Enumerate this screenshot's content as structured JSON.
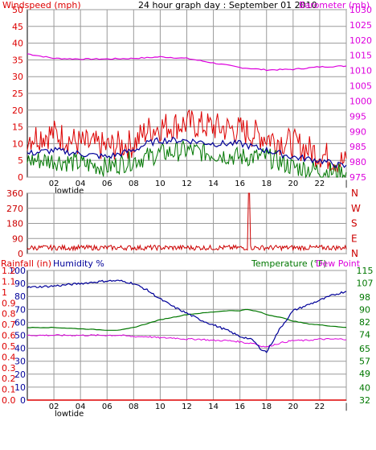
{
  "window": {
    "title": "24 hour graph day : September 01 2010"
  },
  "colors": {
    "windspeed": "#dd0000",
    "gust_green": "#007700",
    "avg_blue": "#000099",
    "barometer": "#dd00dd",
    "direction": "#cc0000",
    "humidity": "#000099",
    "temperature": "#007700",
    "dewpoint": "#dd00dd",
    "rainfall": "#dd0000",
    "grid": "#9a9a9a"
  },
  "chart_data": [
    {
      "type": "line",
      "title": "24 hour graph day : September 01 2010",
      "ylabel": "Windspeed (mph)",
      "y2label": "Barometer (mb)",
      "x_ticks": [
        "02",
        "04",
        "06",
        "08",
        "10",
        "12",
        "14",
        "16",
        "18",
        "20",
        "22",
        "|"
      ],
      "x_annotation": "lowtide",
      "ylim": [
        0,
        50
      ],
      "y_ticks": [
        "50",
        "45",
        "40",
        "35",
        "30",
        "25",
        "20",
        "15",
        "10",
        "5",
        "0"
      ],
      "y2lim": [
        975,
        1030
      ],
      "y2_ticks": [
        "1030",
        "1025",
        "1020",
        "1015",
        "1010",
        "1005",
        "1000",
        "995",
        "990",
        "985",
        "980",
        "975"
      ],
      "x": [
        0,
        2,
        4,
        6,
        8,
        9,
        10,
        12,
        14,
        16,
        18,
        20,
        22,
        24
      ],
      "series": [
        {
          "values": [
            12,
            13,
            10,
            9,
            10,
            14,
            15,
            16,
            15,
            14,
            12,
            10,
            7,
            4
          ]
        },
        {
          "values": [
            5,
            5,
            4,
            3,
            5,
            6,
            7,
            8,
            7,
            6,
            6,
            3,
            2,
            1
          ]
        },
        {
          "values": [
            7,
            8,
            7,
            6,
            8,
            10,
            11,
            11,
            10,
            10,
            8,
            6,
            5,
            3
          ]
        },
        {
          "values": [
            1015.5,
            1014,
            1013.8,
            1013.8,
            1014,
            1014.2,
            1014.5,
            1014,
            1012.5,
            1011,
            1010.2,
            1010.4,
            1011.2,
            1011.5
          ]
        }
      ]
    },
    {
      "type": "line",
      "y_ticks": [
        "360",
        "270",
        "180",
        "90",
        "0"
      ],
      "ylim": [
        0,
        360
      ],
      "compass": [
        "N",
        "W",
        "S",
        "E",
        "N"
      ],
      "x": [
        0,
        2,
        4,
        6,
        8,
        10,
        12,
        14,
        16,
        16.7,
        17,
        18,
        20,
        22,
        24
      ],
      "series": [
        {
          "values": [
            30,
            35,
            40,
            30,
            35,
            40,
            35,
            40,
            30,
            360,
            30,
            40,
            35,
            40,
            40
          ]
        }
      ]
    },
    {
      "type": "line",
      "ylabel": "Rainfall (in)",
      "ylabel2": "Humidity %",
      "y2label": "Temperature (°F)",
      "y2label2": "Dew Point",
      "x_ticks": [
        "02",
        "04",
        "06",
        "08",
        "10",
        "12",
        "14",
        "16",
        "18",
        "20",
        "22",
        "|"
      ],
      "x_annotation": "lowtide",
      "rain_ticks": [
        "1.2",
        "1.1",
        "1",
        "0.9",
        "0.8",
        "0.7",
        "0.6",
        "0.5",
        "0.4",
        "0.3",
        "0.2",
        "0.1",
        "0.0"
      ],
      "humidity_ticks": [
        "100",
        "90",
        "80",
        "70",
        "60",
        "50",
        "40",
        "30",
        "20",
        "10",
        "0"
      ],
      "temp_ticks": [
        "115",
        "107",
        "98",
        "90",
        "82",
        "74",
        "65",
        "57",
        "49",
        "40",
        "32"
      ],
      "ylim": [
        0,
        100
      ],
      "y2lim": [
        32,
        115
      ],
      "x": [
        0,
        2,
        4,
        6,
        7,
        8,
        9,
        10,
        11,
        12,
        13,
        14,
        15,
        16,
        16.5,
        17,
        17.5,
        18,
        19,
        20,
        21,
        22,
        23,
        24
      ],
      "series": [
        {
          "values": [
            87,
            88,
            90,
            92,
            92,
            90,
            85,
            78,
            72,
            67,
            62,
            58,
            54,
            49,
            48,
            46,
            40,
            37,
            55,
            69,
            73,
            77,
            81,
            84
          ]
        },
        {
          "values": [
            56,
            56,
            55,
            54,
            54,
            56,
            59,
            62,
            64,
            66,
            67,
            68,
            69,
            69,
            70,
            69,
            68,
            66,
            64,
            61,
            59,
            58,
            57,
            56
          ]
        },
        {
          "values": [
            50,
            50,
            50,
            50,
            50,
            49,
            49,
            48,
            48,
            47,
            47,
            46,
            46,
            45,
            44,
            44,
            42,
            41,
            44,
            46,
            46,
            47,
            47,
            47
          ]
        },
        {
          "values": [
            0.0,
            0.0,
            0.0,
            0.0,
            0.0,
            0.0,
            0.0,
            0.0,
            0.0,
            0.0,
            0.0,
            0.0,
            0.0,
            0.0,
            0.0,
            0.0,
            0.0,
            0.0,
            0.0,
            0.0,
            0.0,
            0.0,
            0.0,
            0.0
          ]
        }
      ]
    }
  ]
}
